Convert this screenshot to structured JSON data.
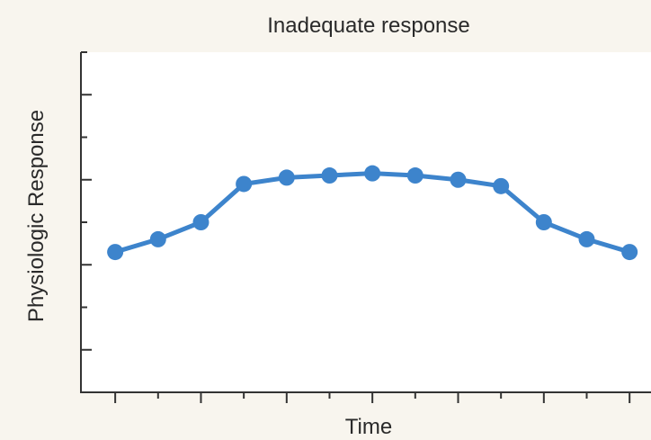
{
  "chart_data": {
    "type": "line",
    "title": "Inadequate response",
    "xlabel": "Time",
    "ylabel": "Physiologic Response",
    "x": [
      1,
      2,
      3,
      4,
      5,
      6,
      7,
      8,
      9,
      10,
      11,
      12,
      13
    ],
    "series": [
      {
        "values": [
          2.3,
          2.6,
          3.0,
          3.9,
          4.05,
          4.1,
          4.15,
          4.1,
          4.0,
          3.85,
          3.0,
          2.6,
          2.3
        ]
      }
    ],
    "xlim": [
      0.2,
      13.5
    ],
    "ylim": [
      -1,
      7
    ],
    "y_ticks": [
      0,
      1,
      2,
      3,
      4,
      5,
      6,
      7
    ],
    "x_ticks": [
      1,
      2,
      3,
      4,
      5,
      6,
      7,
      8,
      9,
      10,
      11,
      12,
      13
    ],
    "grid": false,
    "colors": {
      "line": "#3d84cc",
      "axis": "#333333",
      "plot_bg": "#ffffff",
      "page_bg": "#f8f5ee"
    }
  }
}
